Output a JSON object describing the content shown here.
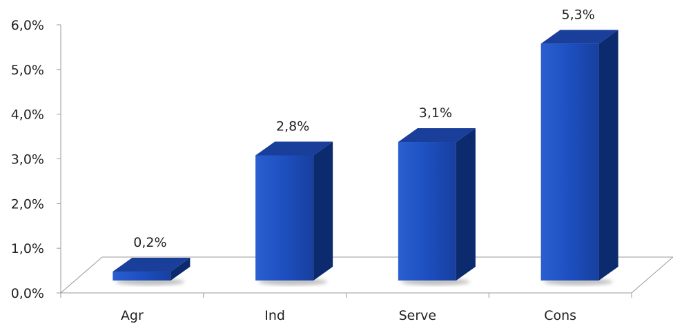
{
  "chart_data": {
    "type": "bar",
    "categories": [
      "Agr",
      "Ind",
      "Serve",
      "Cons"
    ],
    "values": [
      0.2,
      2.8,
      3.1,
      5.3
    ],
    "data_labels": [
      "0,2%",
      "2,8%",
      "3,1%",
      "5,3%"
    ],
    "y_ticks": [
      "0,0%",
      "1,0%",
      "2,0%",
      "3,0%",
      "4,0%",
      "5,0%",
      "6,0%"
    ],
    "ylim": [
      0,
      6
    ],
    "title": "",
    "xlabel": "",
    "ylabel": "",
    "grid": false,
    "style": "3d-column",
    "colors": {
      "bar_front": "#1c4bb0",
      "bar_top": "#1a3f9a",
      "bar_side": "#0c2a6e"
    }
  }
}
